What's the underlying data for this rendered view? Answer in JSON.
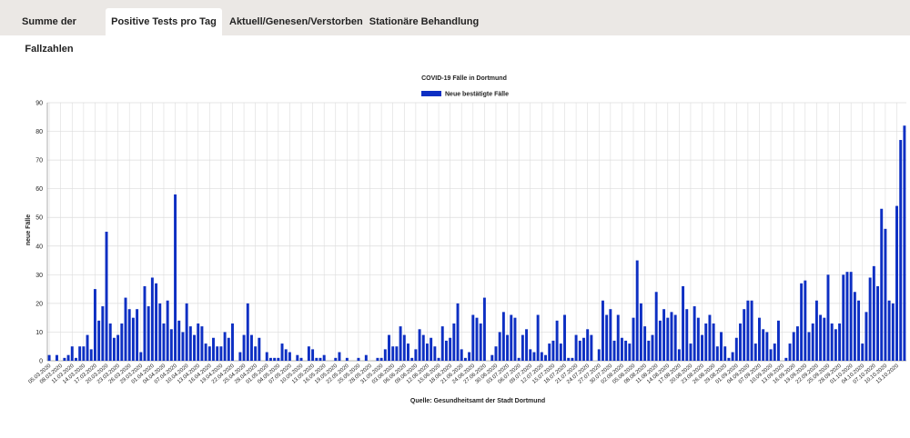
{
  "tabs": [
    {
      "label": "Summe der Fallzahlen",
      "active": false
    },
    {
      "label": "Positive Tests pro Tag",
      "active": true
    },
    {
      "label": "Aktuell/Genesen/Verstorben",
      "active": false
    },
    {
      "label": "Stationäre Behandlung",
      "active": false
    }
  ],
  "colors": {
    "bar": "#0d2fc3",
    "grid": "#dcdcdc",
    "tabbar": "#ebe8e5"
  },
  "chart_data": {
    "type": "bar",
    "title": "COVID-19 Fälle in Dortmund",
    "ylabel": "neue Fälle",
    "source": "Quelle: Gesundheitsamt der Stadt Dortmund",
    "legend_position": "top-center",
    "grid": true,
    "ylim": [
      0,
      90
    ],
    "yticks": [
      0,
      10,
      20,
      30,
      40,
      50,
      60,
      70,
      80,
      90
    ],
    "xtick_labels": [
      "05.03.2020",
      "08.03.2020",
      "11.03.2020",
      "14.03.2020",
      "17.03.2020",
      "20.03.2020",
      "23.03.2020",
      "26.03.2020",
      "29.03.2020",
      "01.04.2020",
      "04.04.2020",
      "07.04.2020",
      "10.04.2020",
      "13.04.2020",
      "16.04.2020",
      "19.04.2020",
      "22.04.2020",
      "25.04.2020",
      "28.04.2020",
      "01.05.2020",
      "04.05.2020",
      "07.05.2020",
      "10.05.2020",
      "13.05.2020",
      "16.05.2020",
      "19.05.2020",
      "22.05.2020",
      "25.05.2020",
      "28.05.2020",
      "31.05.2020",
      "03.06.2020",
      "06.06.2020",
      "09.06.2020",
      "12.06.2020",
      "15.06.2020",
      "18.06.2020",
      "21.06.2020",
      "24.06.2020",
      "27.06.2020",
      "30.06.2020",
      "03.07.2020",
      "06.07.2020",
      "09.07.2020",
      "12.07.2020",
      "15.07.2020",
      "18.07.2020",
      "21.07.2020",
      "24.07.2020",
      "27.07.2020",
      "30.07.2020",
      "02.08.2020",
      "05.08.2020",
      "08.08.2020",
      "11.08.2020",
      "14.08.2020",
      "17.08.2020",
      "20.08.2020",
      "23.08.2020",
      "26.08.2020",
      "29.08.2020",
      "01.09.2020",
      "04.09.2020",
      "07.09.2020",
      "10.09.2020",
      "13.09.2020",
      "16.09.2020",
      "19.09.2020",
      "22.09.2020",
      "25.09.2020",
      "28.09.2020",
      "01.10.2020",
      "04.10.2020",
      "07.10.2020",
      "10.10.2020",
      "13.10.2020"
    ],
    "series": [
      {
        "name": "Neue bestätigte Fälle",
        "values": [
          2,
          0,
          2,
          0,
          1,
          2,
          5,
          1,
          5,
          5,
          9,
          4,
          25,
          14,
          19,
          45,
          13,
          8,
          9,
          13,
          22,
          18,
          15,
          18,
          3,
          26,
          19,
          29,
          27,
          20,
          13,
          21,
          11,
          58,
          14,
          10,
          20,
          12,
          9,
          13,
          12,
          6,
          5,
          8,
          5,
          5,
          10,
          8,
          13,
          0,
          3,
          9,
          20,
          9,
          5,
          8,
          0,
          3,
          1,
          1,
          1,
          6,
          4,
          3,
          0,
          2,
          1,
          0,
          5,
          4,
          1,
          1,
          2,
          0,
          0,
          1,
          3,
          0,
          1,
          0,
          0,
          1,
          0,
          2,
          0,
          0,
          1,
          1,
          4,
          9,
          5,
          5,
          12,
          9,
          6,
          1,
          4,
          11,
          9,
          6,
          8,
          5,
          1,
          12,
          7,
          8,
          13,
          20,
          4,
          1,
          3,
          16,
          15,
          13,
          22,
          0,
          2,
          5,
          10,
          17,
          9,
          16,
          15,
          1,
          9,
          11,
          4,
          3,
          16,
          3,
          2,
          6,
          7,
          14,
          6,
          16,
          1,
          1,
          9,
          7,
          8,
          11,
          9,
          0,
          4,
          21,
          16,
          18,
          7,
          16,
          8,
          7,
          6,
          15,
          35,
          20,
          12,
          7,
          9,
          24,
          14,
          18,
          15,
          17,
          16,
          4,
          26,
          18,
          6,
          19,
          15,
          9,
          13,
          16,
          13,
          5,
          10,
          5,
          1,
          3,
          8,
          13,
          18,
          21,
          21,
          6,
          15,
          11,
          10,
          4,
          6,
          14,
          0,
          1,
          6,
          10,
          12,
          27,
          28,
          10,
          13,
          21,
          16,
          15,
          30,
          13,
          11,
          13,
          30,
          31,
          31,
          24,
          21,
          6,
          17,
          29,
          33,
          26,
          53,
          46,
          21,
          20,
          54,
          77,
          82
        ]
      }
    ]
  }
}
